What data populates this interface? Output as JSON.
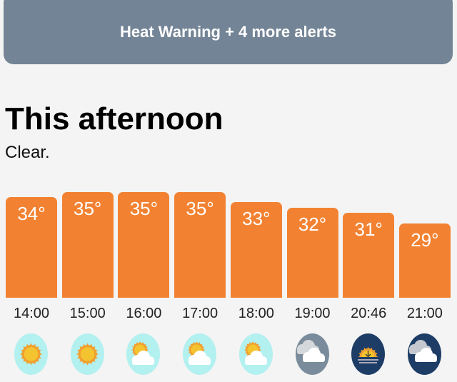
{
  "alert_banner": {
    "label": "Heat Warning + 4 more alerts"
  },
  "forecast": {
    "title": "This afternoon",
    "summary": "Clear."
  },
  "hourly": [
    {
      "time": "14:00",
      "temp": "34°",
      "value": 34,
      "icon": "sun-icon"
    },
    {
      "time": "15:00",
      "temp": "35°",
      "value": 35,
      "icon": "sun-icon"
    },
    {
      "time": "16:00",
      "temp": "35°",
      "value": 35,
      "icon": "partly-cloudy-icon"
    },
    {
      "time": "17:00",
      "temp": "35°",
      "value": 35,
      "icon": "partly-cloudy-icon"
    },
    {
      "time": "18:00",
      "temp": "33°",
      "value": 33,
      "icon": "partly-cloudy-icon"
    },
    {
      "time": "19:00",
      "temp": "32°",
      "value": 32,
      "icon": "cloudy-evening-icon"
    },
    {
      "time": "20:46",
      "temp": "31°",
      "value": 31,
      "icon": "sunset-icon"
    },
    {
      "time": "21:00",
      "temp": "29°",
      "value": 29,
      "icon": "cloudy-night-icon"
    }
  ],
  "colors": {
    "banner": "#738496",
    "bar": "#f28232",
    "day_bg": "#b3f0f0",
    "evening_bg": "#7a8c9b",
    "night_bg": "#1d3d66"
  }
}
